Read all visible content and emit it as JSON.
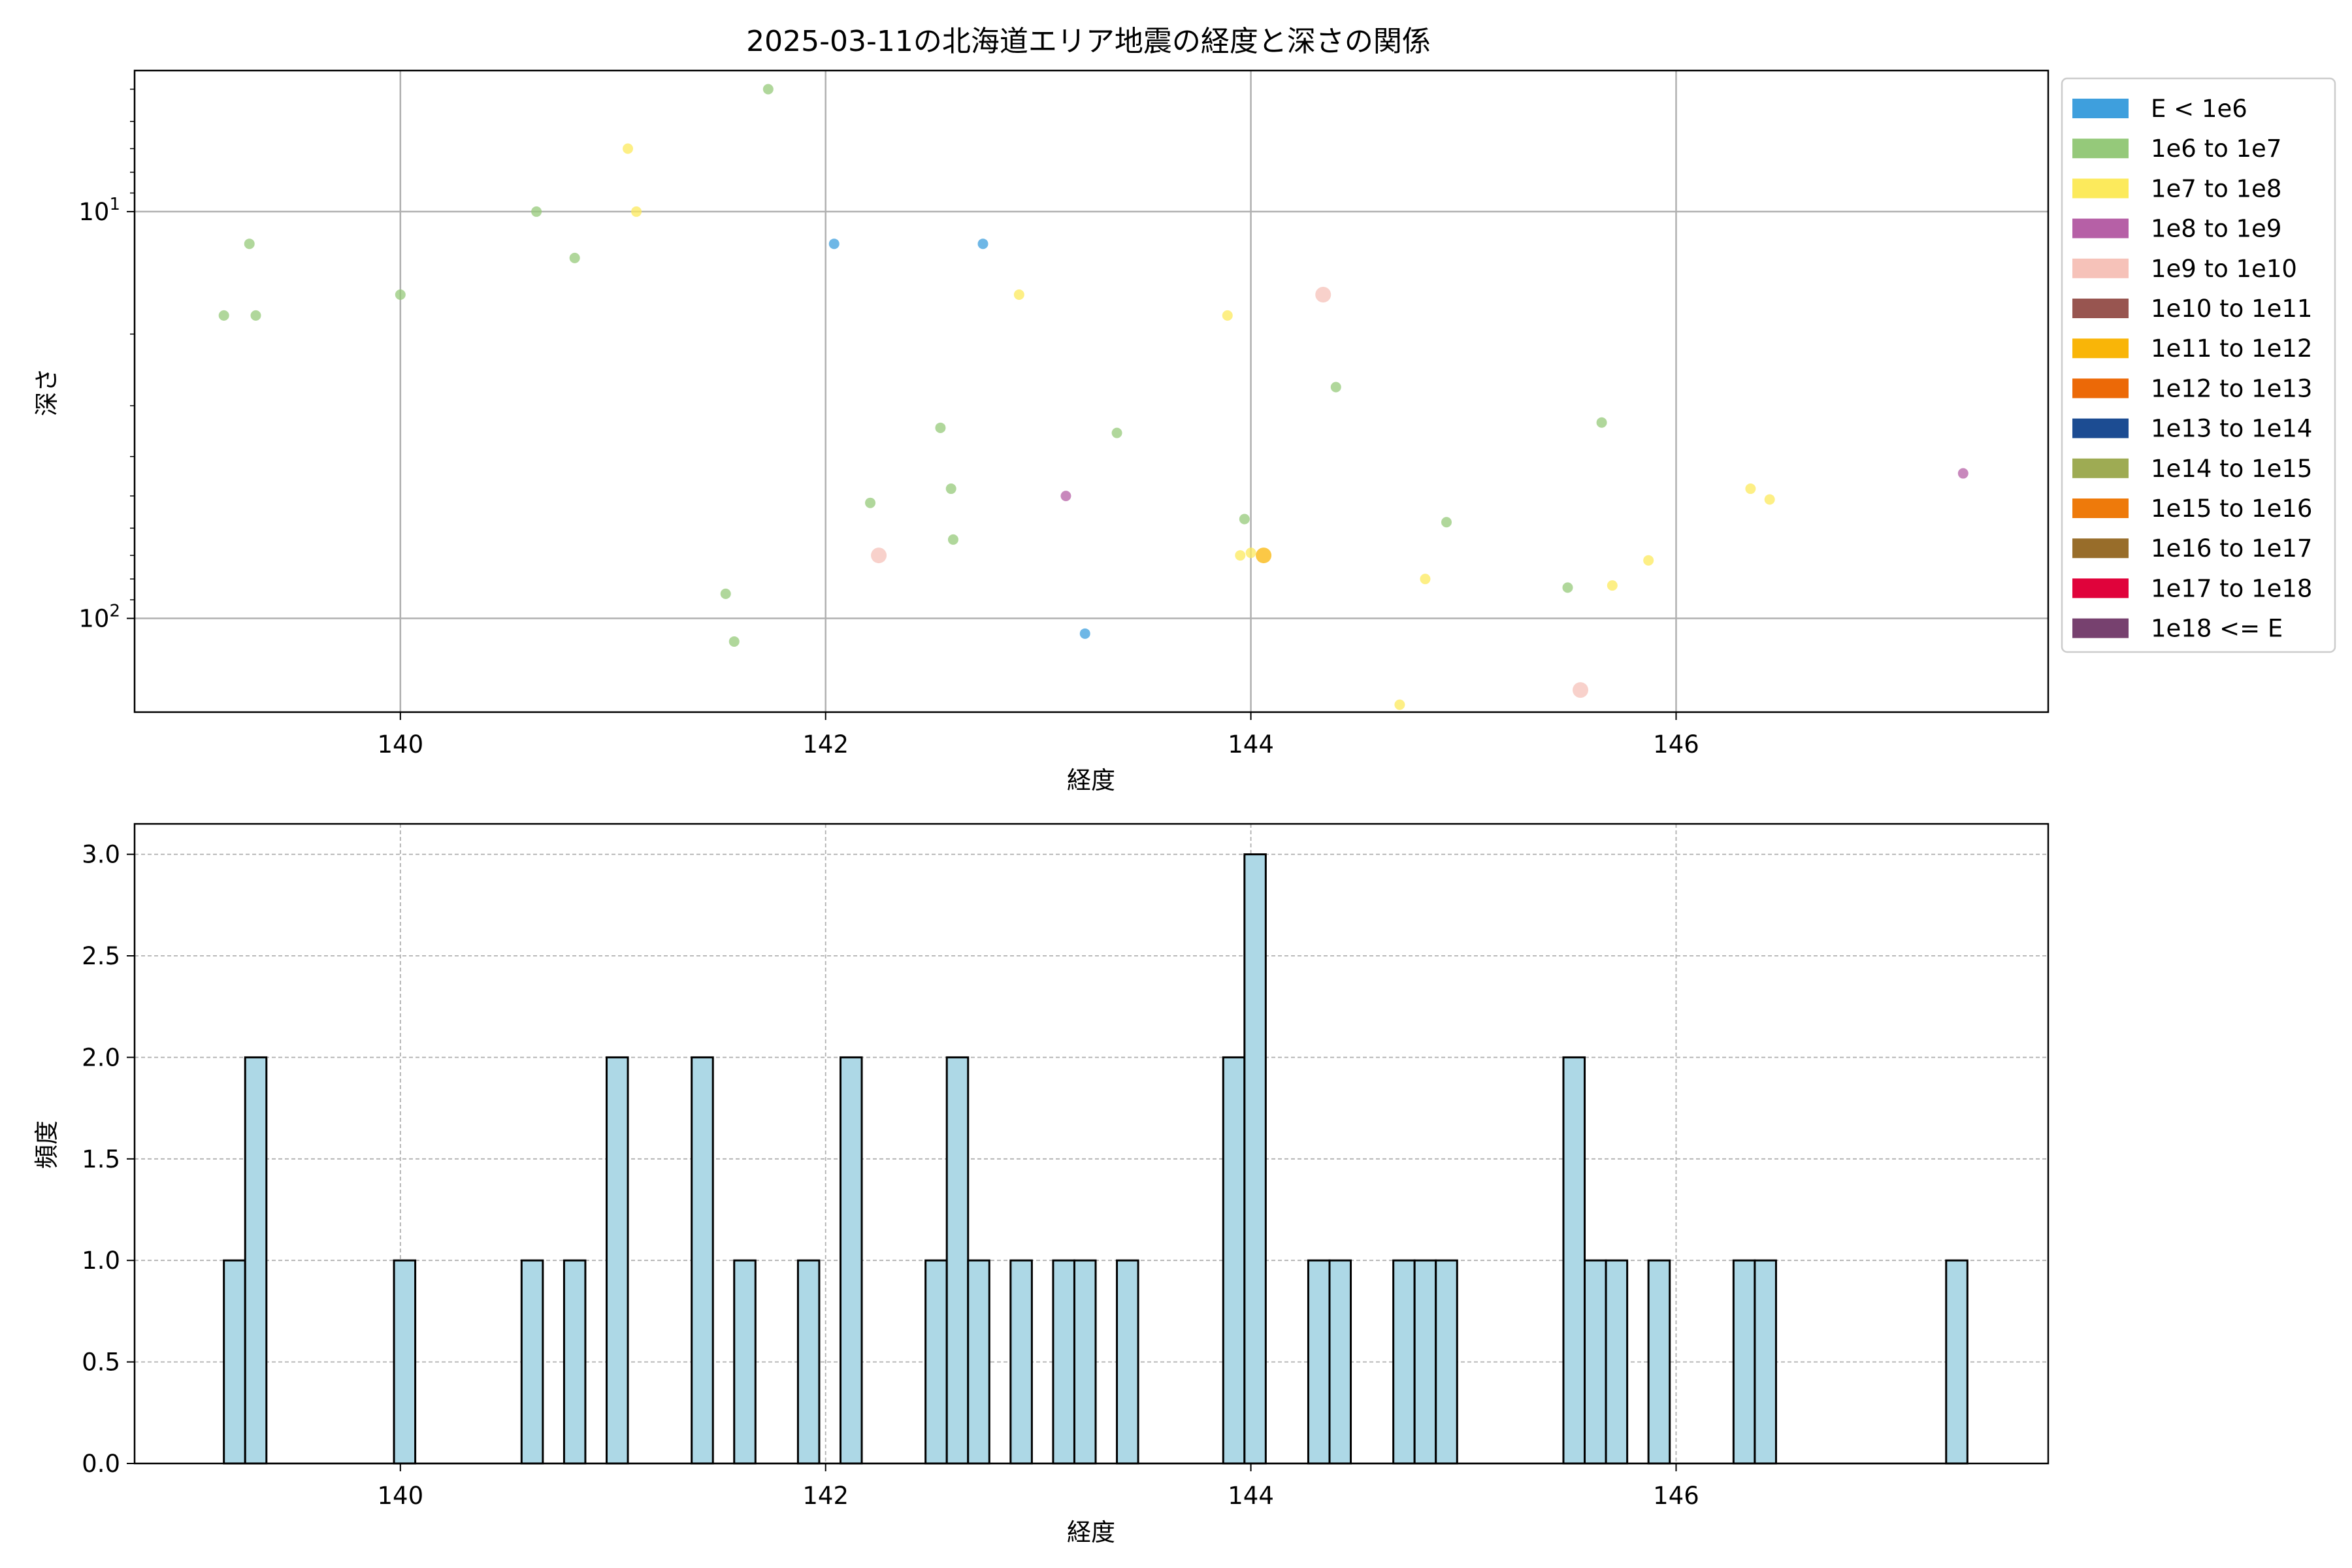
{
  "chart_data": [
    {
      "type": "scatter",
      "title": "2025-03-11の北海道エリア地震の経度と深さの関係",
      "xlabel": "経度",
      "ylabel": "深さ",
      "xlim": [
        138.75,
        147.75
      ],
      "ylim": [
        170,
        4.5
      ],
      "y_scale": "log",
      "y_inverted": true,
      "x_ticks": [
        140,
        142,
        144,
        146
      ],
      "y_ticks": [
        {
          "value": 10,
          "base": "10",
          "exp": "1"
        },
        {
          "value": 100,
          "base": "10",
          "exp": "2"
        }
      ],
      "grid": true,
      "legend_placement": "outside-right",
      "legend": [
        {
          "label": "E < 1e6",
          "color": "#3e9fdd"
        },
        {
          "label": "1e6 to 1e7",
          "color": "#95c97a"
        },
        {
          "label": "1e7 to 1e8",
          "color": "#fcea5c"
        },
        {
          "label": "1e8 to 1e9",
          "color": "#b660a6"
        },
        {
          "label": "1e9 to 1e10",
          "color": "#f6c2b9"
        },
        {
          "label": "1e10 to 1e11",
          "color": "#985550"
        },
        {
          "label": "1e11 to 1e12",
          "color": "#f9b508"
        },
        {
          "label": "1e12 to 1e13",
          "color": "#ec6907"
        },
        {
          "label": "1e13 to 1e14",
          "color": "#1c4c92"
        },
        {
          "label": "1e14 to 1e15",
          "color": "#9eab53"
        },
        {
          "label": "1e15 to 1e16",
          "color": "#ee7a0b"
        },
        {
          "label": "1e16 to 1e17",
          "color": "#986d2a"
        },
        {
          "label": "1e17 to 1e18",
          "color": "#e0033b"
        },
        {
          "label": "1e18 <= E",
          "color": "#77416f"
        }
      ],
      "points": [
        {
          "x": 139.17,
          "y": 18,
          "c": 1
        },
        {
          "x": 139.29,
          "y": 12,
          "c": 1
        },
        {
          "x": 139.32,
          "y": 18,
          "c": 1
        },
        {
          "x": 140.0,
          "y": 16,
          "c": 1
        },
        {
          "x": 140.64,
          "y": 10,
          "c": 1
        },
        {
          "x": 140.82,
          "y": 13,
          "c": 1
        },
        {
          "x": 141.07,
          "y": 7,
          "c": 2
        },
        {
          "x": 141.11,
          "y": 10,
          "c": 2
        },
        {
          "x": 141.53,
          "y": 87,
          "c": 1
        },
        {
          "x": 141.57,
          "y": 114,
          "c": 1
        },
        {
          "x": 141.73,
          "y": 5,
          "c": 1
        },
        {
          "x": 142.04,
          "y": 12,
          "c": 0
        },
        {
          "x": 142.21,
          "y": 52,
          "c": 1
        },
        {
          "x": 142.25,
          "y": 70,
          "c": 4,
          "size": "lg"
        },
        {
          "x": 142.54,
          "y": 34,
          "c": 1
        },
        {
          "x": 142.59,
          "y": 48,
          "c": 1
        },
        {
          "x": 142.6,
          "y": 64,
          "c": 1
        },
        {
          "x": 142.74,
          "y": 12,
          "c": 0
        },
        {
          "x": 142.91,
          "y": 16,
          "c": 2
        },
        {
          "x": 143.13,
          "y": 50,
          "c": 3
        },
        {
          "x": 143.22,
          "y": 109,
          "c": 0
        },
        {
          "x": 143.37,
          "y": 35,
          "c": 1
        },
        {
          "x": 143.89,
          "y": 18,
          "c": 2
        },
        {
          "x": 143.95,
          "y": 70,
          "c": 2
        },
        {
          "x": 143.97,
          "y": 57,
          "c": 1
        },
        {
          "x": 144.0,
          "y": 69,
          "c": 2
        },
        {
          "x": 144.06,
          "y": 70,
          "c": 6,
          "size": "lg"
        },
        {
          "x": 144.34,
          "y": 16,
          "c": 4,
          "size": "lg"
        },
        {
          "x": 144.4,
          "y": 27,
          "c": 1
        },
        {
          "x": 144.7,
          "y": 163,
          "c": 2
        },
        {
          "x": 144.82,
          "y": 80,
          "c": 2
        },
        {
          "x": 144.92,
          "y": 58,
          "c": 1
        },
        {
          "x": 145.49,
          "y": 84,
          "c": 1
        },
        {
          "x": 145.55,
          "y": 150,
          "c": 4,
          "size": "lg"
        },
        {
          "x": 145.65,
          "y": 33,
          "c": 1
        },
        {
          "x": 145.7,
          "y": 83,
          "c": 2
        },
        {
          "x": 145.87,
          "y": 72,
          "c": 2
        },
        {
          "x": 146.35,
          "y": 48,
          "c": 2
        },
        {
          "x": 146.44,
          "y": 51,
          "c": 2
        },
        {
          "x": 147.35,
          "y": 44,
          "c": 3
        }
      ]
    },
    {
      "type": "bar",
      "title": "",
      "xlabel": "経度",
      "ylabel": "頻度",
      "xlim": [
        138.75,
        147.75
      ],
      "ylim": [
        0,
        3.15
      ],
      "x_ticks": [
        140,
        142,
        144,
        146
      ],
      "y_ticks": [
        "0.0",
        "0.5",
        "1.0",
        "1.5",
        "2.0",
        "2.5",
        "3.0"
      ],
      "grid": true,
      "bar_color": "#add8e6",
      "edge_color": "#000000",
      "bin_start": 139.17,
      "bin_width": 0.1,
      "bins": [
        {
          "bin": 0,
          "count": 1
        },
        {
          "bin": 1,
          "count": 2
        },
        {
          "bin": 8,
          "count": 1
        },
        {
          "bin": 14,
          "count": 1
        },
        {
          "bin": 16,
          "count": 1
        },
        {
          "bin": 18,
          "count": 2
        },
        {
          "bin": 22,
          "count": 2
        },
        {
          "bin": 24,
          "count": 1
        },
        {
          "bin": 27,
          "count": 1
        },
        {
          "bin": 29,
          "count": 2
        },
        {
          "bin": 33,
          "count": 1
        },
        {
          "bin": 34,
          "count": 2
        },
        {
          "bin": 35,
          "count": 1
        },
        {
          "bin": 37,
          "count": 1
        },
        {
          "bin": 39,
          "count": 1
        },
        {
          "bin": 40,
          "count": 1
        },
        {
          "bin": 42,
          "count": 1
        },
        {
          "bin": 47,
          "count": 2
        },
        {
          "bin": 48,
          "count": 3
        },
        {
          "bin": 51,
          "count": 1
        },
        {
          "bin": 52,
          "count": 1
        },
        {
          "bin": 55,
          "count": 1
        },
        {
          "bin": 56,
          "count": 1
        },
        {
          "bin": 57,
          "count": 1
        },
        {
          "bin": 63,
          "count": 2
        },
        {
          "bin": 64,
          "count": 1
        },
        {
          "bin": 65,
          "count": 1
        },
        {
          "bin": 67,
          "count": 1
        },
        {
          "bin": 71,
          "count": 1
        },
        {
          "bin": 72,
          "count": 1
        },
        {
          "bin": 81,
          "count": 1
        }
      ]
    }
  ]
}
